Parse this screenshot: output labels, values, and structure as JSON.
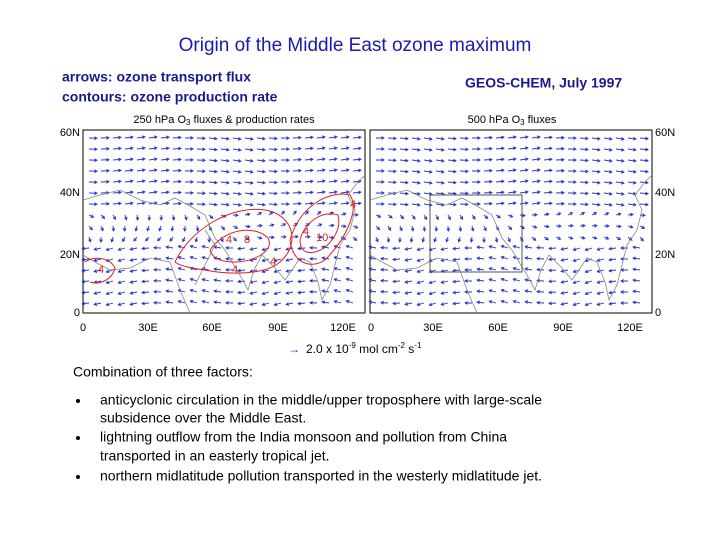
{
  "header": {
    "title": "Origin of the Middle East ozone maximum"
  },
  "labels": {
    "left": [
      "arrows: ozone transport flux",
      "contours: ozone production rate"
    ],
    "right": "GEOS-CHEM, July 1997"
  },
  "panels": [
    {
      "title": {
        "before": "250 hPa O",
        "sub": "3",
        "after": " fluxes & production rates"
      },
      "lat_labels": [
        "60N",
        "40N",
        "20N",
        "0"
      ],
      "lon_labels": [
        "0",
        "30E",
        "60E",
        "90E",
        "120E"
      ]
    },
    {
      "title": {
        "before": "500 hPa O",
        "sub": "3",
        "after": " fluxes"
      },
      "lat_labels": [
        "60N",
        "40N",
        "20N",
        "0"
      ],
      "lon_labels": [
        "0",
        "30E",
        "60E",
        "90E",
        "120E"
      ]
    }
  ],
  "contour_labels": [
    "4",
    "8",
    "4",
    "4",
    "4",
    "10",
    "4",
    "4"
  ],
  "legend": {
    "arrow": "→",
    "text": "2.0 x 10",
    "exp1": "-9",
    "unit1": " mol cm",
    "exp2": "-2",
    "unit2": " s",
    "exp3": "-1"
  },
  "body": {
    "intro": "Combination of three factors:",
    "bullets": [
      [
        "anticyclonic circulation in the middle/upper troposphere with large-scale",
        "subsidence over the Middle East."
      ],
      [
        "lightning outflow from the India monsoon and pollution from China",
        "transported in an easterly tropical jet."
      ],
      [
        "northern midlatitude pollution transported in the westerly midlatitude jet."
      ]
    ]
  }
}
